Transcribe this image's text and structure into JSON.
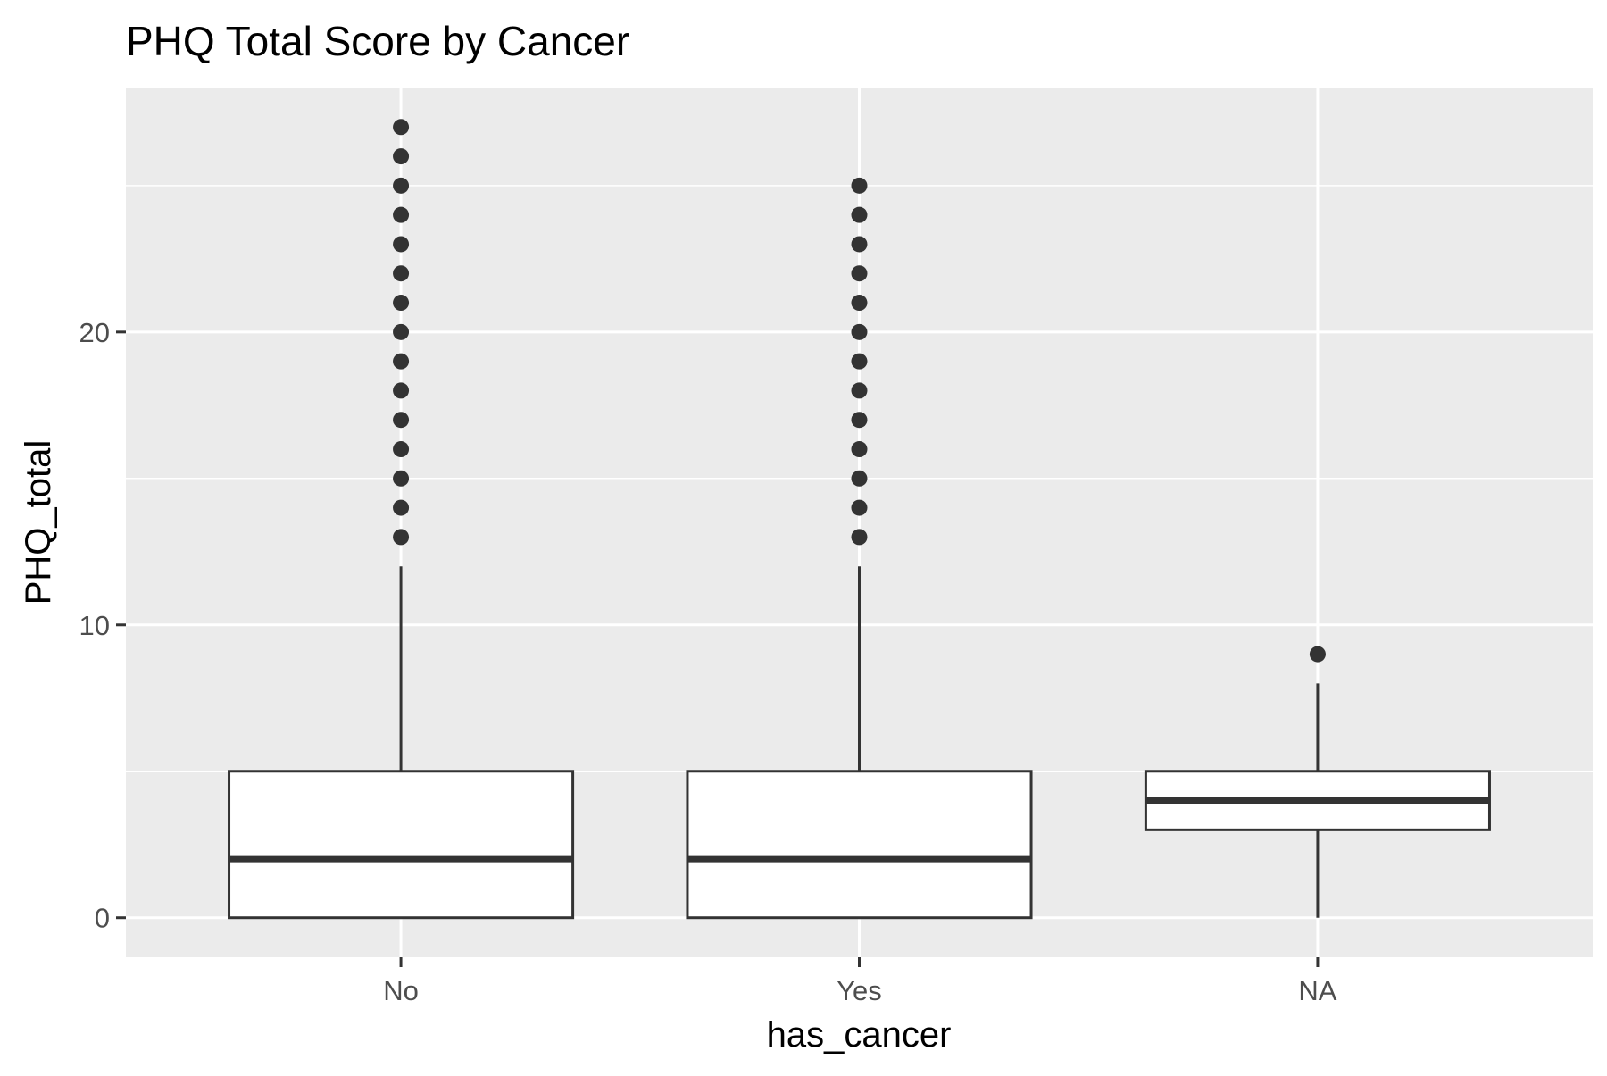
{
  "colors": {
    "panel_background": "#ebebeb",
    "grid_line": "#ffffff",
    "box_fill": "#ffffff",
    "box_stroke": "#333333",
    "outlier": "#333333",
    "tick_mark": "#333333"
  },
  "chart_data": {
    "type": "boxplot",
    "title": "PHQ Total Score by Cancer",
    "xlabel": "has_cancer",
    "ylabel": "PHQ_total",
    "categories": [
      "No",
      "Yes",
      "NA"
    ],
    "y_ticks": [
      {
        "value": 0,
        "label": "0"
      },
      {
        "value": 10,
        "label": "10"
      },
      {
        "value": 20,
        "label": "20"
      }
    ],
    "y_minor_ticks": [
      5,
      15,
      25
    ],
    "ylim": [
      -1.35,
      28.35
    ],
    "grid": true,
    "legend": "none",
    "boxes": [
      {
        "category": "No",
        "whisker_low": 0,
        "q1": 0,
        "median": 2,
        "q3": 5,
        "whisker_high": 12,
        "outliers": [
          13,
          14,
          15,
          16,
          17,
          18,
          19,
          20,
          21,
          22,
          23,
          24,
          25,
          26,
          27
        ]
      },
      {
        "category": "Yes",
        "whisker_low": 0,
        "q1": 0,
        "median": 2,
        "q3": 5,
        "whisker_high": 12,
        "outliers": [
          13,
          14,
          15,
          16,
          17,
          18,
          19,
          20,
          21,
          22,
          23,
          24,
          25
        ]
      },
      {
        "category": "NA",
        "whisker_low": 0,
        "q1": 3,
        "median": 4,
        "q3": 5,
        "whisker_high": 8,
        "outliers": [
          9
        ]
      }
    ]
  }
}
